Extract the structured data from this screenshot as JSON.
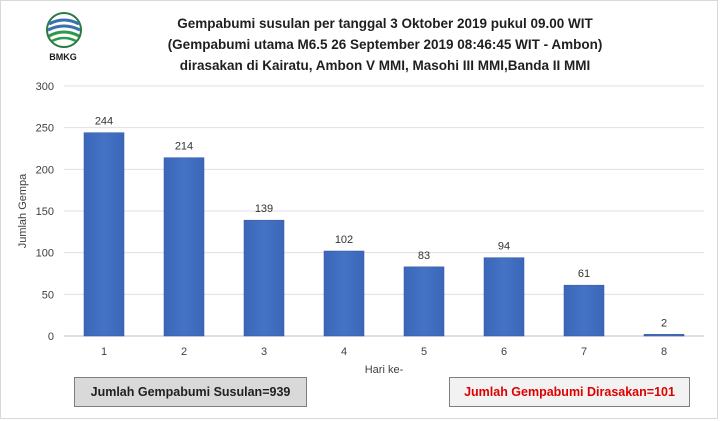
{
  "logo": {
    "text": "BMKG",
    "icon": "bmkg-logo-icon"
  },
  "chart_data": {
    "type": "bar",
    "title": [
      "Gempabumi susulan per tanggal 3 Oktober 2019 pukul 09.00 WIT",
      "(Gempabumi utama M6.5 26 September 2019 08:46:45 WIT - Ambon)",
      "dirasakan di Kairatu, Ambon V MMI, Masohi III MMI,Banda II MMI"
    ],
    "xlabel": "Hari ke-",
    "ylabel": "Jumlah Gempa",
    "categories": [
      "1",
      "2",
      "3",
      "4",
      "5",
      "6",
      "7",
      "8"
    ],
    "values": [
      244,
      214,
      139,
      102,
      83,
      94,
      61,
      2
    ],
    "ylim": [
      0,
      300
    ],
    "yticks": [
      0,
      50,
      100,
      150,
      200,
      250,
      300
    ],
    "grid": true,
    "bar_color": "#4472c4",
    "data_labels": true
  },
  "summary": {
    "total_label": "Jumlah Gempabumi Susulan=939",
    "felt_label": "Jumlah Gempabumi Dirasakan=101",
    "felt_color": "#e00000"
  }
}
